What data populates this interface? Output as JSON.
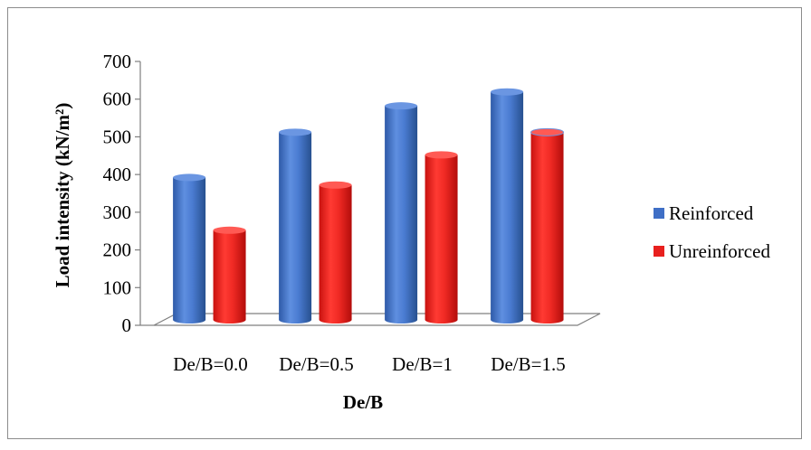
{
  "chart_data": {
    "type": "bar",
    "title": "",
    "xlabel": "De/B",
    "ylabel": "Load intensity (kN/m²)",
    "categories": [
      "De/B=0.0",
      "De/B=0.5",
      "De/B=1",
      "De/B=1.5"
    ],
    "series": [
      {
        "name": "Reinforced",
        "values": [
          385,
          505,
          575,
          612
        ],
        "color": "#3f6fc6"
      },
      {
        "name": "Unreinforced",
        "values": [
          245,
          365,
          445,
          505
        ],
        "color": "#e8201e"
      }
    ],
    "ylim": [
      0,
      700
    ],
    "yticks": [
      0,
      100,
      200,
      300,
      400,
      500,
      600,
      700
    ],
    "grid": false,
    "legend": "right",
    "style": "3d-cylinder"
  }
}
